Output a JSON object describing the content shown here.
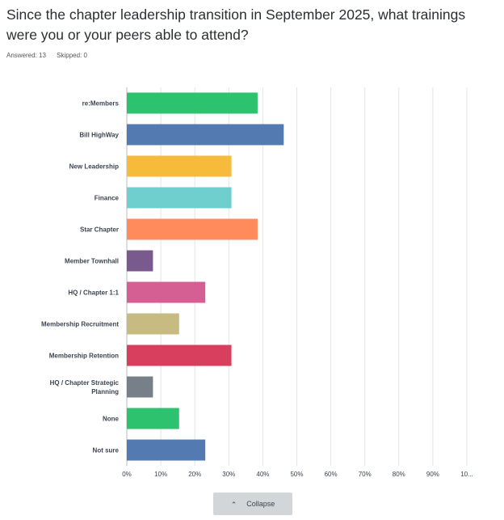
{
  "question": {
    "title": "Since the chapter leadership transition in September 2025, what trainings were you or your peers able to attend?",
    "answered": "Answered: 13",
    "skipped": "Skipped: 0"
  },
  "chart_data": {
    "type": "bar",
    "orientation": "horizontal",
    "categories": [
      "re:Members",
      "Bill HighWay",
      "New Leadership",
      "Finance",
      "Star Chapter",
      "Member Townhall",
      "HQ / Chapter 1:1",
      "Membership Recruitment",
      "Membership Retention",
      "HQ / Chapter Strategic Planning",
      "None",
      "Not sure"
    ],
    "values": [
      38.46,
      46.15,
      30.77,
      30.77,
      38.46,
      7.69,
      23.08,
      15.38,
      30.77,
      7.69,
      15.38,
      23.08
    ],
    "colors": [
      "#2dc26e",
      "#537bb2",
      "#f6bb3a",
      "#6fcfcf",
      "#ff8a5b",
      "#7a5a8e",
      "#d55f92",
      "#c8bb82",
      "#d83f5e",
      "#778088",
      "#2dc26e",
      "#537bb2"
    ],
    "x_ticks": [
      "0%",
      "10%",
      "20%",
      "30%",
      "40%",
      "50%",
      "60%",
      "70%",
      "80%",
      "90%",
      "10..."
    ],
    "xlim": [
      0,
      100
    ],
    "grid": true,
    "legend": "none"
  },
  "controls": {
    "collapse_label": "Collapse",
    "collapse_icon": "chevron-up-icon"
  }
}
